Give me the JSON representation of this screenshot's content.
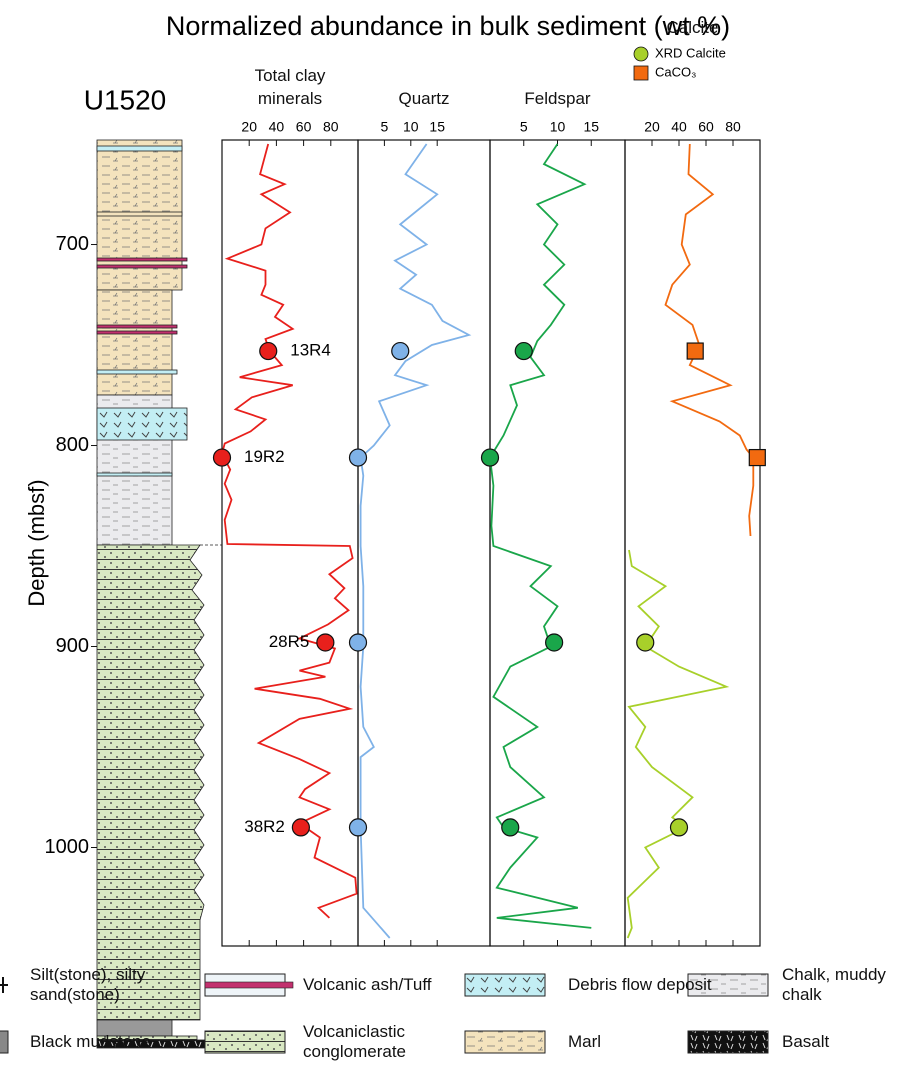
{
  "title": "Normalized abundance in bulk sediment (wt %)",
  "site": "U1520",
  "depth_axis": {
    "label": "Depth (mbsf)",
    "ylim": [
      648,
      1049
    ],
    "yticks": [
      700,
      800,
      900,
      1000
    ]
  },
  "sample_labels": [
    "13R4",
    "19R2",
    "28R5",
    "38R2"
  ],
  "chart_data": [
    {
      "type": "line",
      "title": "Total clay minerals",
      "xlim": [
        0,
        100
      ],
      "xticks": [
        20,
        40,
        60,
        80
      ],
      "series": [
        {
          "color": "#e8201c",
          "depth": [
            650,
            665,
            670,
            675,
            684,
            692,
            700,
            707,
            713,
            720,
            725,
            730,
            736,
            742,
            747,
            753,
            760,
            766,
            770,
            776,
            782,
            787,
            793,
            799,
            804,
            812,
            819,
            827,
            837,
            849,
            850,
            856,
            864,
            871,
            876,
            882,
            889,
            896,
            901,
            908,
            912,
            915,
            921,
            926,
            931,
            936,
            948,
            956,
            963,
            971,
            975,
            981,
            988,
            995,
            1005,
            1015,
            1023,
            1030,
            1035
          ],
          "values": [
            34,
            28,
            46,
            29,
            50,
            32,
            29,
            4,
            32,
            32,
            29,
            45,
            39,
            52,
            32,
            35,
            44,
            13,
            52,
            22,
            10,
            32,
            21,
            2,
            0,
            6,
            2,
            7,
            2,
            4,
            94,
            96,
            79,
            90,
            83,
            93,
            78,
            57,
            83,
            79,
            57,
            76,
            24,
            72,
            94,
            57,
            27,
            57,
            79,
            61,
            57,
            79,
            57,
            72,
            68,
            98,
            99,
            71,
            79
          ]
        },
        {
          "marker": "circle",
          "color": "#e8201c",
          "depth": [
            753,
            806,
            898,
            990
          ],
          "values": [
            34,
            0,
            76,
            58
          ]
        }
      ]
    },
    {
      "type": "line",
      "title": "Quartz",
      "xlim": [
        0,
        25
      ],
      "xticks": [
        5,
        10,
        15
      ],
      "series": [
        {
          "color": "#7fb2e8",
          "depth": [
            650,
            665,
            675,
            690,
            700,
            708,
            715,
            722,
            730,
            738,
            745,
            750,
            758,
            765,
            770,
            778,
            790,
            800,
            806,
            815,
            830,
            850,
            870,
            900,
            920,
            940,
            950,
            955,
            990,
            1030,
            1045
          ],
          "values": [
            13,
            9,
            15,
            8,
            13,
            7,
            11,
            8,
            14,
            16,
            21,
            14,
            9,
            7,
            13,
            4,
            6,
            3,
            0.5,
            1,
            0.5,
            0.5,
            1,
            1,
            0.5,
            1,
            3,
            0.5,
            0.5,
            1,
            6
          ]
        },
        {
          "marker": "circle",
          "color": "#7fb2e8",
          "depth": [
            753,
            806,
            898,
            990
          ],
          "values": [
            8,
            0,
            0,
            0
          ]
        }
      ]
    },
    {
      "type": "line",
      "title": "Feldspar",
      "xlim": [
        0,
        20
      ],
      "xticks": [
        5,
        10,
        15
      ],
      "series": [
        {
          "color": "#1aa64a",
          "depth": [
            650,
            660,
            670,
            680,
            690,
            700,
            710,
            720,
            730,
            740,
            748,
            756,
            765,
            770,
            780,
            795,
            806,
            820,
            840,
            850,
            860,
            870,
            880,
            890,
            900,
            910,
            925,
            940,
            950,
            960,
            975,
            985,
            990,
            995,
            1010,
            1020,
            1030,
            1035,
            1040
          ],
          "values": [
            10,
            8,
            14,
            7,
            10,
            8,
            11,
            8,
            11,
            9,
            7,
            6,
            8,
            3,
            4,
            2,
            0,
            0.5,
            0.2,
            0.5,
            9,
            6,
            10,
            8,
            9,
            3,
            0.5,
            7,
            2,
            3,
            8,
            1,
            2,
            7,
            3,
            1,
            13,
            1,
            15
          ]
        },
        {
          "marker": "circle",
          "color": "#1aa64a",
          "depth": [
            753,
            806,
            898,
            990
          ],
          "values": [
            5,
            0,
            9.5,
            3
          ]
        }
      ]
    },
    {
      "type": "line",
      "title": "Calcite",
      "xlim": [
        0,
        100
      ],
      "xticks": [
        20,
        40,
        60,
        80
      ],
      "series": [
        {
          "name": "XRD Calcite",
          "color": "#a8d02a",
          "depth": [
            852,
            860,
            870,
            880,
            890,
            900,
            910,
            920,
            930,
            940,
            950,
            960,
            975,
            985,
            990,
            1000,
            1010,
            1025,
            1040,
            1045
          ],
          "values": [
            3,
            5,
            30,
            10,
            25,
            15,
            40,
            75,
            3,
            15,
            8,
            20,
            50,
            35,
            45,
            15,
            25,
            2,
            5,
            2
          ]
        },
        {
          "marker": "circle",
          "color": "#a8d02a",
          "depth": [
            898,
            990
          ],
          "values": [
            15,
            40
          ]
        },
        {
          "name": "CaCO₃",
          "color": "#f26a10",
          "depth": [
            650,
            665,
            675,
            685,
            700,
            710,
            720,
            730,
            740,
            750,
            760,
            770,
            778,
            788,
            795,
            802,
            806,
            820,
            835,
            845
          ],
          "values": [
            48,
            47,
            65,
            45,
            42,
            48,
            35,
            30,
            50,
            55,
            48,
            78,
            35,
            70,
            85,
            90,
            95,
            95,
            92,
            93
          ]
        },
        {
          "marker": "square",
          "color": "#f26a10",
          "depth": [
            753,
            806
          ],
          "values": [
            52,
            98
          ]
        }
      ]
    }
  ],
  "legend": {
    "items": [
      {
        "label": "Silt(stone), silty sand(stone)"
      },
      {
        "label": "Volcanic ash/Tuff"
      },
      {
        "label": "Debris flow deposit"
      },
      {
        "label": "Chalk, muddy chalk"
      },
      {
        "label": "Black mudstone"
      },
      {
        "label": "Volcaniclastic conglomerate"
      },
      {
        "label": "Marl"
      },
      {
        "label": "Basalt"
      }
    ]
  }
}
